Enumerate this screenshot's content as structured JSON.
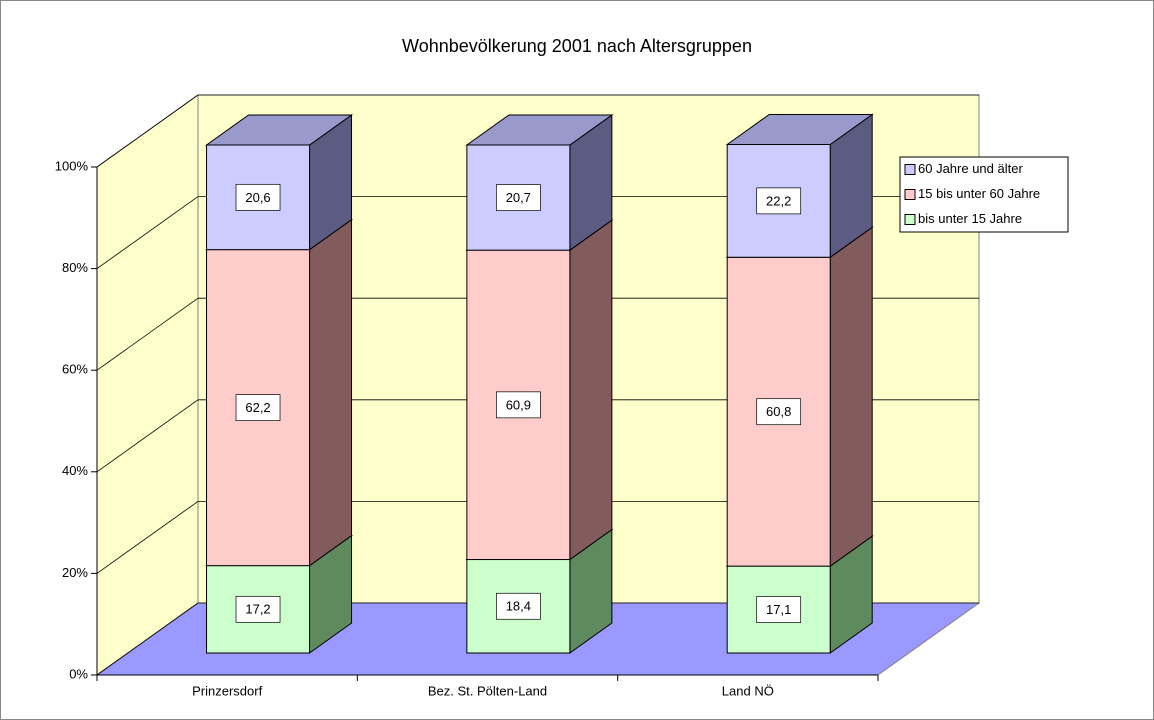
{
  "chart_data": {
    "type": "bar3d_stacked",
    "title": "Wohnbevölkerung 2001 nach Altersgruppen",
    "categories": [
      "Prinzersdorf",
      "Bez. St. Pölten-Land",
      "Land NÖ"
    ],
    "series": [
      {
        "name": "bis unter 15 Jahre",
        "color": "#ccffcc",
        "side_color": "#5e8a5e",
        "values": [
          17.2,
          18.4,
          17.1
        ],
        "value_labels": [
          "17,2",
          "18,4",
          "17,1"
        ]
      },
      {
        "name": "15 bis unter 60 Jahre",
        "color": "#ffcccc",
        "side_color": "#825c5c",
        "values": [
          62.2,
          60.9,
          60.8
        ],
        "value_labels": [
          "62,2",
          "60,9",
          "60,8"
        ]
      },
      {
        "name": "60 Jahre und älter",
        "color": "#ccccff",
        "side_color": "#5c5c82",
        "top_color": "#9999cc",
        "values": [
          20.6,
          20.7,
          22.2
        ],
        "value_labels": [
          "20,6",
          "20,7",
          "22,2"
        ]
      }
    ],
    "ylim": [
      0,
      100
    ],
    "yticks": [
      {
        "value": 0,
        "label": "0%"
      },
      {
        "value": 20,
        "label": "20%"
      },
      {
        "value": 40,
        "label": "40%"
      },
      {
        "value": 60,
        "label": "60%"
      },
      {
        "value": 80,
        "label": "80%"
      },
      {
        "value": 100,
        "label": "100%"
      }
    ],
    "grid": true,
    "legend": "right",
    "wall_color": "#ffffcc",
    "floor_color": "#9999ff"
  }
}
